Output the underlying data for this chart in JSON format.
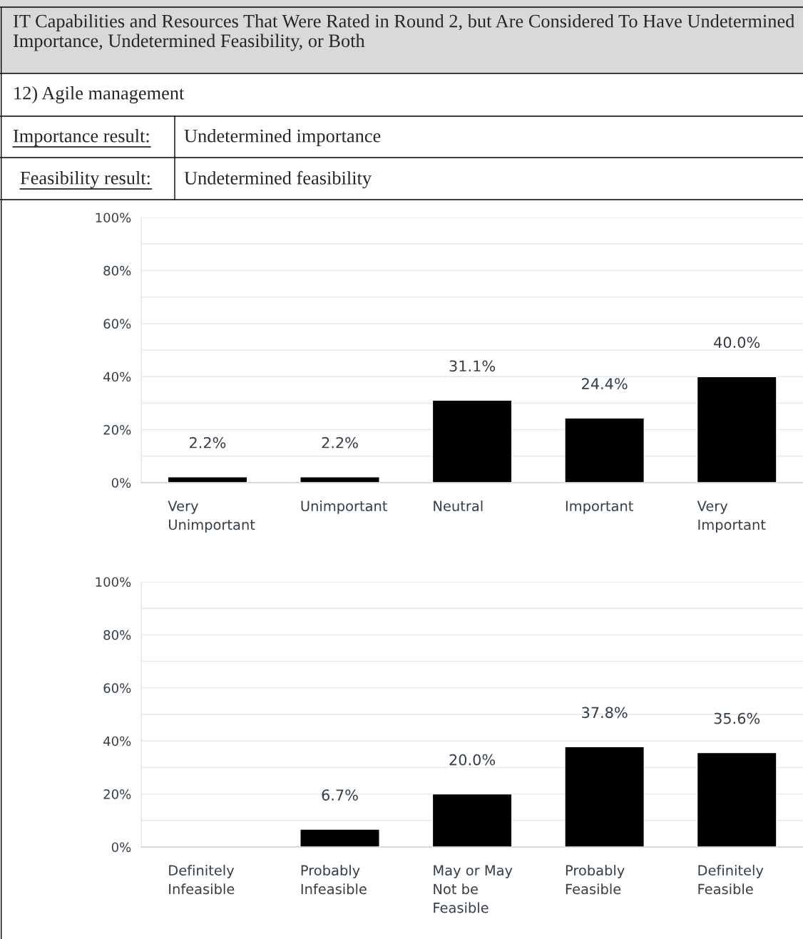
{
  "chart_data": [
    {
      "type": "bar",
      "title": "IT Capabilities and Resources That Were Rated in Round 2, but Are Considered To Have Undetermined Importance, Undetermined Feasibility, or Both",
      "annotations": [
        "12) Agile management",
        "Importance result:",
        "Undetermined importance",
        "Feasibility result:",
        "Undetermined feasibility"
      ],
      "categories": [
        "Very\nUnimportant",
        "Unimportant",
        "Neutral",
        "Important",
        "Very\nImportant"
      ],
      "values": [
        2.2,
        2.2,
        31.1,
        24.4,
        40.0
      ],
      "color": "#000000",
      "value_labels": [
        "2.2%",
        "2.2%",
        "31.1%",
        "24.4%",
        "40.0%"
      ],
      "ylim": [
        0,
        100
      ],
      "yticks": [
        {
          "value": 0,
          "label": "0%"
        },
        {
          "value": 10,
          "label": null
        },
        {
          "value": 20,
          "label": "20%"
        },
        {
          "value": 30,
          "label": null
        },
        {
          "value": 40,
          "label": "40%"
        },
        {
          "value": 50,
          "label": null
        },
        {
          "value": 60,
          "label": "60%"
        },
        {
          "value": 70,
          "label": null
        },
        {
          "value": 80,
          "label": "80%"
        },
        {
          "value": 90,
          "label": null
        },
        {
          "value": 100,
          "label": "100%"
        }
      ],
      "grid": "y"
    },
    {
      "type": "bar",
      "categories": [
        "Definitely\nInfeasible",
        "Probably\nInfeasible",
        "May or May\nNot be\nFeasible",
        "Probably\nFeasible",
        "Definitely\nFeasible"
      ],
      "values": [
        null,
        6.7,
        20.0,
        37.8,
        35.6
      ],
      "color": "#000000",
      "value_labels": [
        null,
        "6.7%",
        "20.0%",
        "37.8%",
        "35.6%"
      ],
      "ylim": [
        0,
        100
      ],
      "yticks": [
        {
          "value": 0,
          "label": "0%"
        },
        {
          "value": 10,
          "label": null
        },
        {
          "value": 20,
          "label": "20%"
        },
        {
          "value": 30,
          "label": null
        },
        {
          "value": 40,
          "label": "40%"
        },
        {
          "value": 50,
          "label": null
        },
        {
          "value": 60,
          "label": "60%"
        },
        {
          "value": 70,
          "label": null
        },
        {
          "value": 80,
          "label": "80%"
        },
        {
          "value": 90,
          "label": null
        },
        {
          "value": 100,
          "label": "100%"
        }
      ],
      "grid": "y"
    }
  ]
}
